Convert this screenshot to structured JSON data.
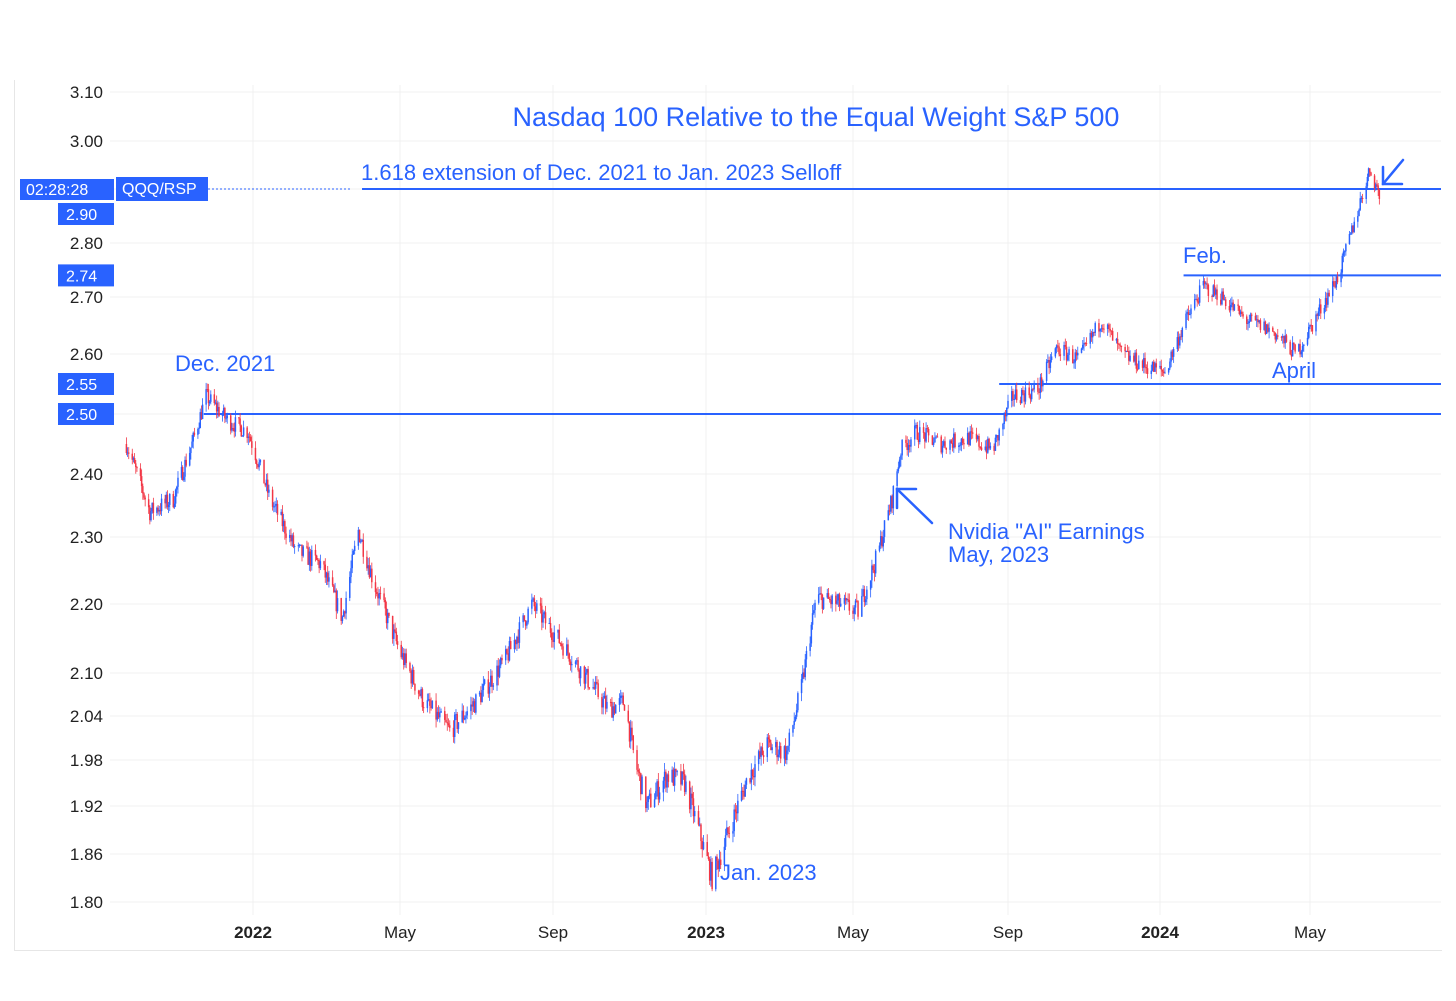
{
  "chart_data": {
    "type": "candlestick",
    "title": "Nasdaq 100 Relative to the Equal Weight S&P 500",
    "symbol": "QQQ/RSP",
    "countdown": "02:28:28",
    "y_ticks": [
      "3.10",
      "3.00",
      "2.90",
      "2.80",
      "2.70",
      "2.60",
      "2.50",
      "2.40",
      "2.30",
      "2.20",
      "2.10",
      "2.04",
      "1.98",
      "1.92",
      "1.86",
      "1.80"
    ],
    "x_ticks": [
      {
        "label": "2022",
        "bold": true
      },
      {
        "label": "May",
        "bold": false
      },
      {
        "label": "Sep",
        "bold": false
      },
      {
        "label": "2023",
        "bold": true
      },
      {
        "label": "May",
        "bold": false
      },
      {
        "label": "Sep",
        "bold": false
      },
      {
        "label": "2024",
        "bold": true
      },
      {
        "label": "May",
        "bold": false
      }
    ],
    "price_badges": [
      "2.90",
      "2.74",
      "2.55",
      "2.50"
    ],
    "levels": [
      {
        "value": 2.9,
        "from": "2022-03-31",
        "label": "1.618 extension of Dec. 2021 to Jan. 2023 Selloff"
      },
      {
        "value": 2.74,
        "from": "2024-01-20"
      },
      {
        "value": 2.55,
        "from": "2023-08-25"
      },
      {
        "value": 2.5,
        "from": "2021-11-20"
      }
    ],
    "annotations": [
      {
        "text": "Dec. 2021"
      },
      {
        "text": "Jan. 2023"
      },
      {
        "text": "Nvidia \"AI\" Earnings"
      },
      {
        "text": "May, 2023"
      },
      {
        "text": "Feb."
      },
      {
        "text": "April"
      }
    ],
    "series": [
      {
        "date": "2021-09-15",
        "value": 2.45
      },
      {
        "date": "2021-10-05",
        "value": 2.34
      },
      {
        "date": "2021-10-25",
        "value": 2.36
      },
      {
        "date": "2021-11-10",
        "value": 2.45
      },
      {
        "date": "2021-11-22",
        "value": 2.53
      },
      {
        "date": "2021-12-10",
        "value": 2.49
      },
      {
        "date": "2021-12-28",
        "value": 2.47
      },
      {
        "date": "2022-01-15",
        "value": 2.36
      },
      {
        "date": "2022-02-05",
        "value": 2.28
      },
      {
        "date": "2022-02-25",
        "value": 2.26
      },
      {
        "date": "2022-03-15",
        "value": 2.18
      },
      {
        "date": "2022-03-28",
        "value": 2.31
      },
      {
        "date": "2022-04-10",
        "value": 2.23
      },
      {
        "date": "2022-05-01",
        "value": 2.13
      },
      {
        "date": "2022-05-20",
        "value": 2.06
      },
      {
        "date": "2022-06-10",
        "value": 2.02
      },
      {
        "date": "2022-07-01",
        "value": 2.06
      },
      {
        "date": "2022-07-25",
        "value": 2.12
      },
      {
        "date": "2022-08-15",
        "value": 2.2
      },
      {
        "date": "2022-09-05",
        "value": 2.15
      },
      {
        "date": "2022-09-25",
        "value": 2.1
      },
      {
        "date": "2022-10-15",
        "value": 2.05
      },
      {
        "date": "2022-10-28",
        "value": 2.06
      },
      {
        "date": "2022-11-05",
        "value": 1.98
      },
      {
        "date": "2022-11-15",
        "value": 1.92
      },
      {
        "date": "2022-12-01",
        "value": 1.96
      },
      {
        "date": "2022-12-15",
        "value": 1.95
      },
      {
        "date": "2022-12-28",
        "value": 1.88
      },
      {
        "date": "2023-01-06",
        "value": 1.83
      },
      {
        "date": "2023-01-20",
        "value": 1.89
      },
      {
        "date": "2023-02-05",
        "value": 1.96
      },
      {
        "date": "2023-02-20",
        "value": 2.0
      },
      {
        "date": "2023-03-08",
        "value": 1.99
      },
      {
        "date": "2023-03-20",
        "value": 2.08
      },
      {
        "date": "2023-04-01",
        "value": 2.21
      },
      {
        "date": "2023-04-20",
        "value": 2.2
      },
      {
        "date": "2023-05-05",
        "value": 2.19
      },
      {
        "date": "2023-05-20",
        "value": 2.27
      },
      {
        "date": "2023-06-01",
        "value": 2.36
      },
      {
        "date": "2023-06-08",
        "value": 2.44
      },
      {
        "date": "2023-06-20",
        "value": 2.47
      },
      {
        "date": "2023-07-10",
        "value": 2.45
      },
      {
        "date": "2023-08-01",
        "value": 2.46
      },
      {
        "date": "2023-08-20",
        "value": 2.44
      },
      {
        "date": "2023-09-05",
        "value": 2.53
      },
      {
        "date": "2023-09-25",
        "value": 2.54
      },
      {
        "date": "2023-10-10",
        "value": 2.61
      },
      {
        "date": "2023-10-28",
        "value": 2.59
      },
      {
        "date": "2023-11-15",
        "value": 2.66
      },
      {
        "date": "2023-12-01",
        "value": 2.6
      },
      {
        "date": "2023-12-20",
        "value": 2.58
      },
      {
        "date": "2024-01-05",
        "value": 2.57
      },
      {
        "date": "2024-01-20",
        "value": 2.65
      },
      {
        "date": "2024-02-05",
        "value": 2.72
      },
      {
        "date": "2024-02-20",
        "value": 2.7
      },
      {
        "date": "2024-03-10",
        "value": 2.66
      },
      {
        "date": "2024-04-01",
        "value": 2.64
      },
      {
        "date": "2024-04-20",
        "value": 2.6
      },
      {
        "date": "2024-05-05",
        "value": 2.66
      },
      {
        "date": "2024-05-25",
        "value": 2.74
      },
      {
        "date": "2024-06-10",
        "value": 2.86
      },
      {
        "date": "2024-06-20",
        "value": 2.94
      },
      {
        "date": "2024-06-28",
        "value": 2.89
      }
    ]
  }
}
